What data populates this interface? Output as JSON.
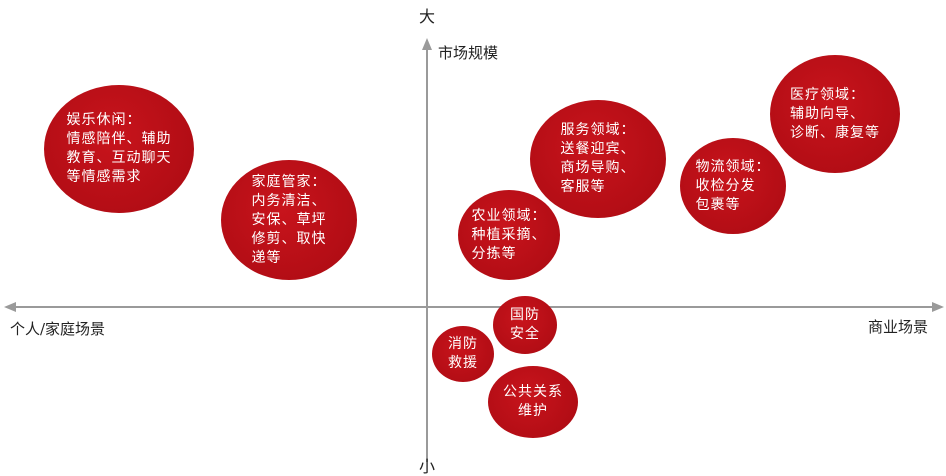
{
  "axes": {
    "top": "大",
    "top_label": "市场规模",
    "bottom": "小",
    "left": "个人/家庭场景",
    "right": "商业场景"
  },
  "bubbles": {
    "entertainment": [
      "娱乐休闲：",
      "情感陪伴、辅助",
      "教育、互动聊天",
      "等情感需求"
    ],
    "housekeeping": [
      "家庭管家：",
      "内务清洁、",
      "安保、草坪",
      "修剪、取快",
      "递等"
    ],
    "agriculture": [
      "农业领域：",
      "种植采摘、",
      "分拣等"
    ],
    "service": [
      "服务领域：",
      "送餐迎宾、",
      "商场导购、",
      "客服等"
    ],
    "logistics": [
      "物流领域：",
      "收检分发",
      "包裹等"
    ],
    "medical": [
      "医疗领域：",
      "辅助向导、",
      "诊断、康复等"
    ],
    "defense": [
      "国防",
      "安全"
    ],
    "firefighting": [
      "消防",
      "救援"
    ],
    "public_relations": [
      "公共关系",
      "维护"
    ]
  },
  "colors": {
    "bubble": "#b30d15",
    "axis": "#999999"
  }
}
